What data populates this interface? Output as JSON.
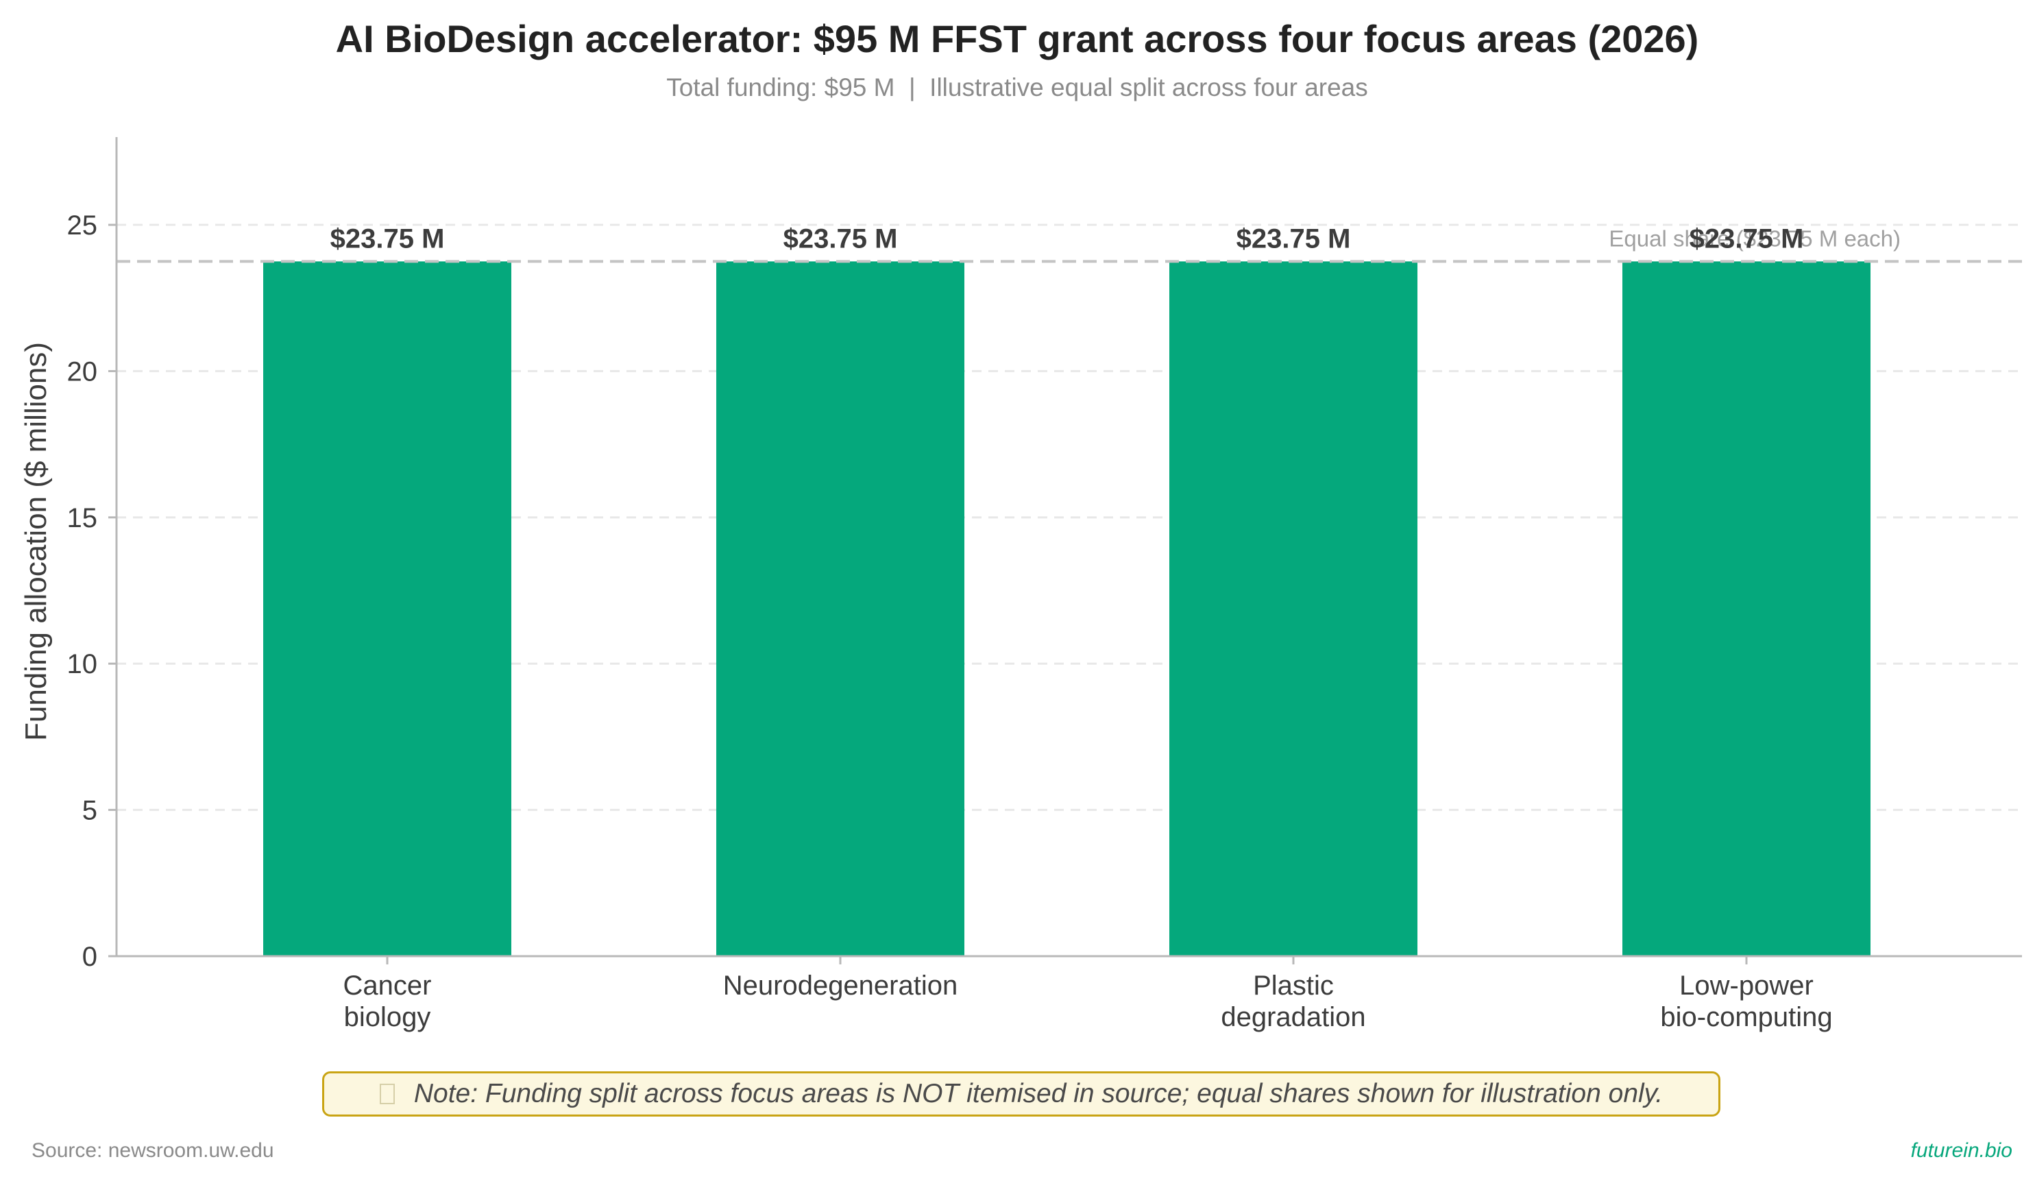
{
  "chart_data": {
    "type": "bar",
    "title": "AI BioDesign accelerator: $95 M FFST grant across four focus areas (2026)",
    "subtitle": "Total funding: $95 M  |  Illustrative equal split across four areas",
    "xlabel": "",
    "ylabel": "Funding allocation ($ millions)",
    "categories": [
      [
        "Cancer",
        "biology"
      ],
      [
        "Neurodegeneration"
      ],
      [
        "Plastic",
        "degradation"
      ],
      [
        "Low-power",
        "bio-computing"
      ]
    ],
    "values": [
      23.75,
      23.75,
      23.75,
      23.75
    ],
    "value_labels": [
      "$23.75 M",
      "$23.75 M",
      "$23.75 M",
      "$23.75 M"
    ],
    "ylim": [
      0,
      28
    ],
    "yticks": [
      0,
      5,
      10,
      15,
      20,
      25
    ],
    "grid": "horizontal dashed",
    "reference_line": {
      "value": 23.75,
      "label": "Equal share ($23.75 M each)"
    },
    "colors": {
      "bar": "#05a87c",
      "reference_line": "#c4c4c4",
      "grid": "#e8e8e8",
      "axis": "#b8b8b8",
      "note_border": "#c9a414",
      "note_background": "#fcf7df",
      "brand": "#07a77c"
    }
  },
  "note": {
    "icon": "warning-icon",
    "text": "Note: Funding split across focus areas is NOT itemised in source; equal shares shown for illustration only."
  },
  "footer": {
    "source": "Source: newsroom.uw.edu",
    "brand": "futurein.bio"
  }
}
